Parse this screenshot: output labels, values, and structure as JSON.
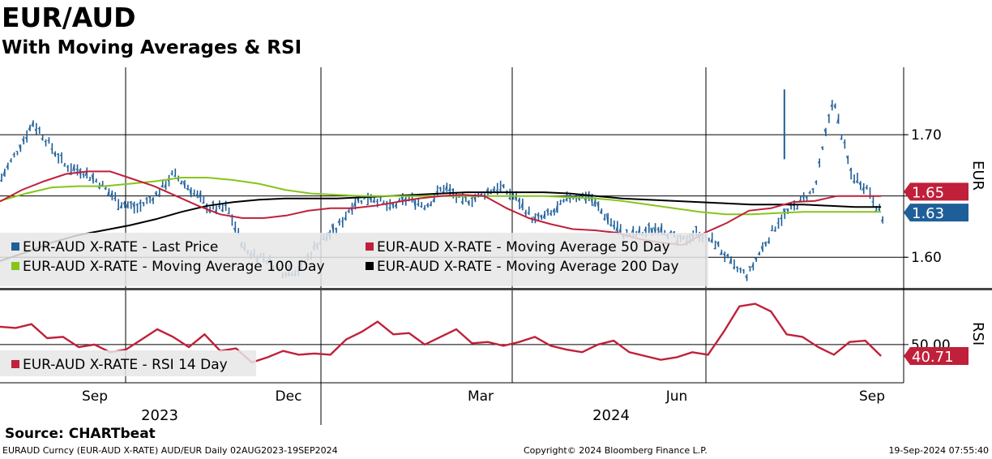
{
  "header": {
    "title": "EUR/AUD",
    "subtitle": "With Moving Averages & RSI"
  },
  "footer": {
    "source": "Source: CHARTbeat",
    "ticker_info": "EURAUD Curncy (EUR-AUD X-RATE) AUD/EUR  Daily 02AUG2023-19SEP2024",
    "copyright": "Copyright© 2024 Bloomberg Finance L.P.",
    "timestamp": "19-Sep-2024 07:55:40"
  },
  "colors": {
    "price": "#1f5f99",
    "ma50": "#c0203a",
    "ma100": "#86c519",
    "ma200": "#000000",
    "rsi": "#c0203a",
    "price_tag": "#1f5f99",
    "ma50_tag": "#c0203a"
  },
  "chart_data": {
    "type": "line",
    "title": "EUR/AUD",
    "subtitle": "With Moving Averages & RSI",
    "date_range": "02AUG2023-19SEP2024",
    "frequency": "Daily",
    "currency_label": "EUR",
    "x_month_labels": [
      "Sep",
      "Dec",
      "Mar",
      "Jun",
      "Sep"
    ],
    "x_year_labels": [
      "2023",
      "2024"
    ],
    "price_panel": {
      "ylim": [
        1.575,
        1.755
      ],
      "yticks": [
        1.6,
        1.65,
        1.7
      ],
      "ytick_labels": [
        "1.60",
        "",
        "1.70"
      ],
      "legend": [
        "EUR-AUD X-RATE - Last Price",
        "EUR-AUD X-RATE - Moving Average 50 Day",
        "EUR-AUD X-RATE - Moving Average 100 Day",
        "EUR-AUD X-RATE - Moving Average 200 Day"
      ],
      "last_values": {
        "price": "1.63",
        "ma50": "1.65"
      },
      "x": [
        0,
        0.02,
        0.035,
        0.05,
        0.07,
        0.09,
        0.11,
        0.13,
        0.15,
        0.17,
        0.19,
        0.21,
        0.23,
        0.25,
        0.27,
        0.29,
        0.31,
        0.33,
        0.35,
        0.37,
        0.39,
        0.41,
        0.43,
        0.45,
        0.47,
        0.49,
        0.51,
        0.53,
        0.55,
        0.57,
        0.59,
        0.61,
        0.63,
        0.65,
        0.67,
        0.69,
        0.71,
        0.73,
        0.75,
        0.77,
        0.79,
        0.81,
        0.826,
        0.84,
        0.86,
        0.88,
        0.9,
        0.92,
        0.94,
        0.96,
        0.975
      ],
      "series": [
        {
          "name": "Last Price",
          "values": [
            1.665,
            1.69,
            1.71,
            1.695,
            1.675,
            1.67,
            1.66,
            1.645,
            1.64,
            1.65,
            1.668,
            1.655,
            1.64,
            1.64,
            1.605,
            1.6,
            1.588,
            1.59,
            1.612,
            1.622,
            1.645,
            1.65,
            1.64,
            1.648,
            1.642,
            1.658,
            1.645,
            1.65,
            1.658,
            1.648,
            1.63,
            1.636,
            1.65,
            1.65,
            1.632,
            1.618,
            1.62,
            1.625,
            1.612,
            1.62,
            1.612,
            1.592,
            1.585,
            1.605,
            1.63,
            1.643,
            1.655,
            1.73,
            1.668,
            1.655,
            1.632
          ]
        },
        {
          "name": "Moving Average 50 Day",
          "values": [
            1.6455,
            1.655,
            1.662,
            1.668,
            1.67,
            1.67,
            1.664,
            1.658,
            1.65,
            1.642,
            1.635,
            1.632,
            1.632,
            1.634,
            1.638,
            1.64,
            1.64,
            1.642,
            1.645,
            1.648,
            1.65,
            1.651,
            1.65,
            1.64,
            1.632,
            1.627,
            1.623,
            1.622,
            1.62,
            1.615,
            1.612,
            1.61,
            1.62,
            1.628,
            1.638,
            1.64,
            1.645,
            1.646,
            1.65,
            1.65,
            1.65
          ]
        },
        {
          "name": "Moving Average 100 Day",
          "values": [
            1.646,
            1.652,
            1.657,
            1.658,
            1.658,
            1.66,
            1.662,
            1.665,
            1.665,
            1.663,
            1.66,
            1.655,
            1.652,
            1.651,
            1.65,
            1.65,
            1.65,
            1.65,
            1.65,
            1.65,
            1.65,
            1.65,
            1.649,
            1.648,
            1.646,
            1.643,
            1.64,
            1.637,
            1.635,
            1.635,
            1.636,
            1.637,
            1.637,
            1.637,
            1.637
          ]
        },
        {
          "name": "Moving Average 200 Day",
          "values": [
            1.597,
            1.604,
            1.612,
            1.618,
            1.622,
            1.626,
            1.631,
            1.637,
            1.642,
            1.645,
            1.647,
            1.648,
            1.648,
            1.648,
            1.649,
            1.65,
            1.651,
            1.652,
            1.653,
            1.653,
            1.653,
            1.653,
            1.652,
            1.65,
            1.648,
            1.647,
            1.646,
            1.645,
            1.644,
            1.643,
            1.643,
            1.643,
            1.642,
            1.641,
            1.641
          ]
        }
      ]
    },
    "rsi_panel": {
      "ylim": [
        20,
        90
      ],
      "yticks": [
        50
      ],
      "ytick_labels": [
        "50.00"
      ],
      "legend": [
        "EUR-AUD X-RATE - RSI 14 Day"
      ],
      "last_value": "40.71",
      "label": "RSI",
      "values": [
        64,
        63,
        66,
        55,
        56,
        48,
        50,
        44,
        46,
        54,
        62,
        56,
        48,
        58,
        45,
        47,
        36,
        40,
        45,
        42,
        43,
        42,
        54,
        60,
        68,
        58,
        59,
        50,
        56,
        62,
        51,
        52,
        49,
        52,
        56,
        49,
        46,
        44,
        50,
        53,
        44,
        41,
        38,
        40,
        44,
        42,
        60,
        80,
        82,
        76,
        58,
        56,
        48,
        42,
        52,
        53,
        41
      ]
    }
  },
  "ui": {
    "tags": {
      "eur": "EUR",
      "rsi": "RSI"
    }
  }
}
